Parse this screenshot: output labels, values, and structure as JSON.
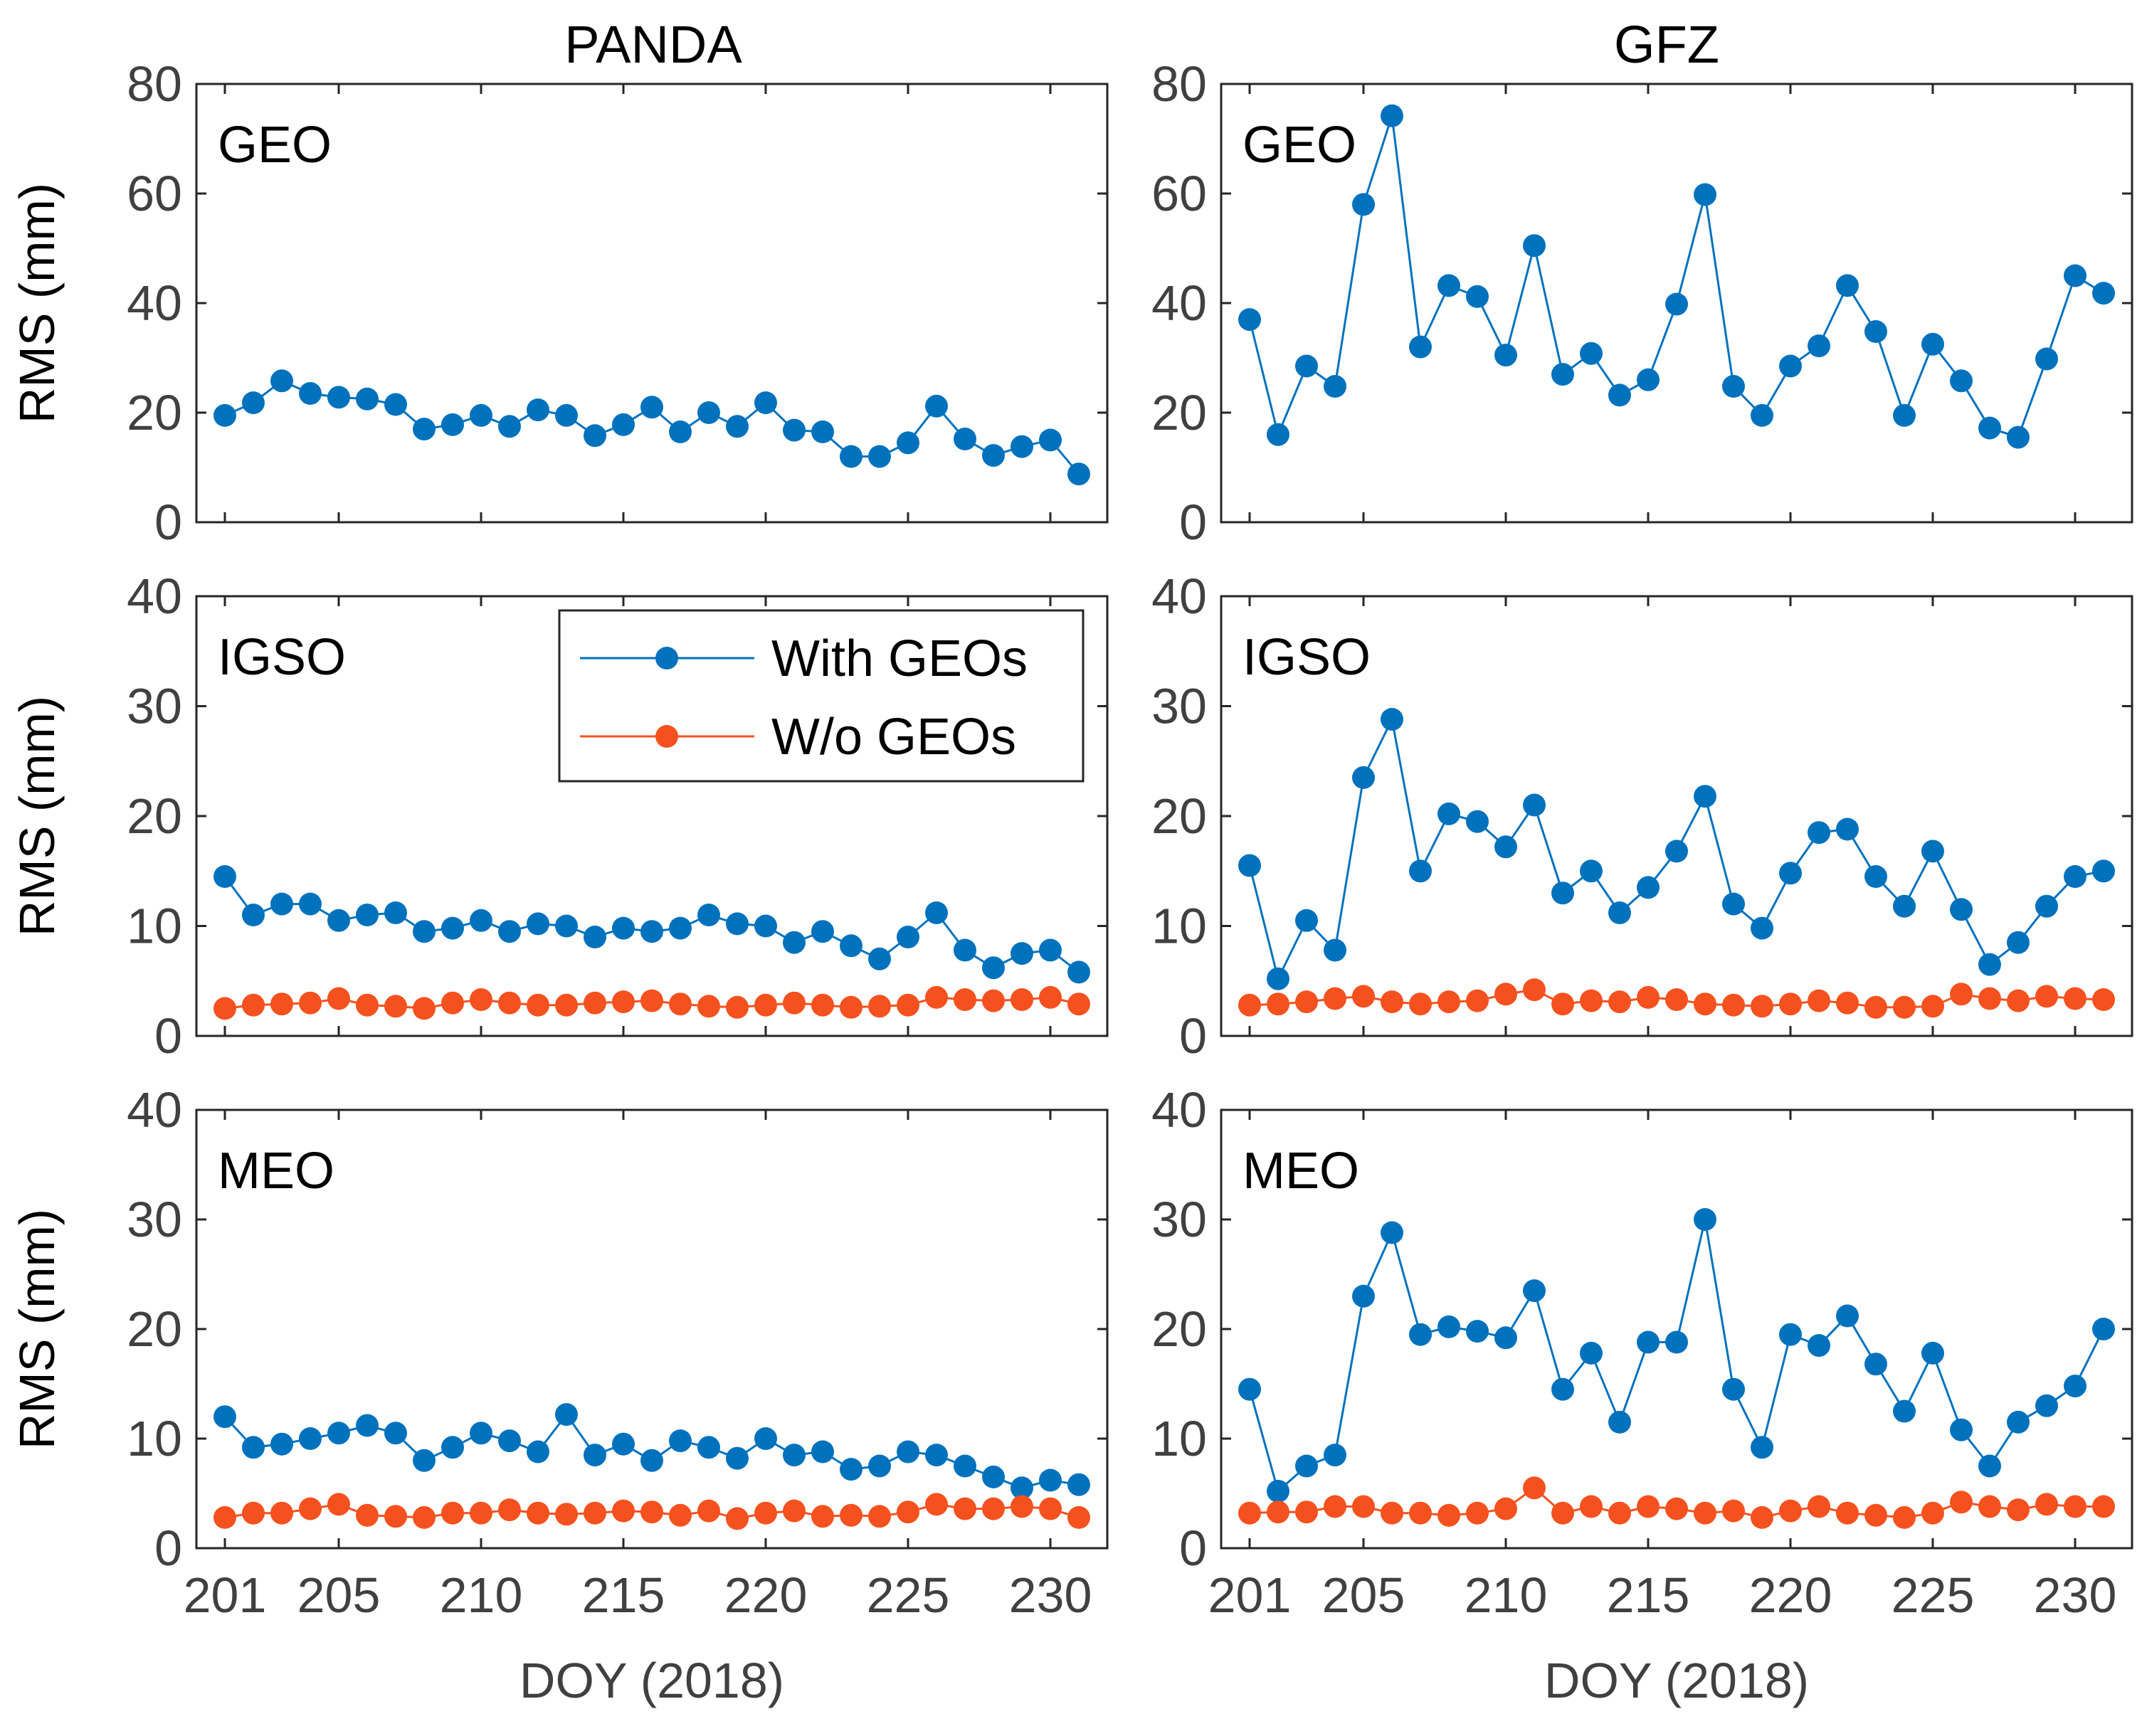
{
  "figure": {
    "column_titles": [
      "PANDA",
      "GFZ"
    ],
    "x_axis_label": "DOY (2018)",
    "y_axis_label": "RMS (mm)",
    "legend": {
      "entries": [
        {
          "label": "With GEOs",
          "color": "#0072BD"
        },
        {
          "label": "W/o GEOs",
          "color": "#F4511E"
        }
      ]
    }
  },
  "chart_data": [
    {
      "type": "line",
      "title": "GEO",
      "column": "PANDA",
      "xlabel": "",
      "ylabel": "RMS (mm)",
      "xlim": [
        200,
        232
      ],
      "ylim": [
        0,
        80
      ],
      "xticks": [
        201,
        205,
        210,
        215,
        220,
        225,
        230
      ],
      "yticks": [
        0,
        20,
        40,
        60,
        80
      ],
      "x": [
        201,
        202,
        203,
        204,
        205,
        206,
        207,
        208,
        209,
        210,
        211,
        212,
        213,
        214,
        215,
        216,
        217,
        218,
        219,
        220,
        221,
        222,
        223,
        224,
        225,
        226,
        227,
        228,
        229,
        230,
        231
      ],
      "series": [
        {
          "name": "With GEOs",
          "color": "#0072BD",
          "values": [
            19.5,
            21.8,
            25.8,
            23.5,
            22.8,
            22.5,
            21.5,
            17.0,
            17.8,
            19.5,
            17.5,
            20.5,
            19.5,
            15.8,
            17.8,
            21.0,
            16.5,
            20.0,
            17.5,
            21.8,
            16.8,
            16.5,
            12.0,
            12.0,
            14.5,
            21.2,
            15.2,
            12.2,
            13.8,
            15.0,
            8.8
          ]
        }
      ]
    },
    {
      "type": "line",
      "title": "GEO",
      "column": "GFZ",
      "xlabel": "",
      "ylabel": "",
      "xlim": [
        200,
        232
      ],
      "ylim": [
        0,
        80
      ],
      "xticks": [
        201,
        205,
        210,
        215,
        220,
        225,
        230
      ],
      "yticks": [
        0,
        20,
        40,
        60,
        80
      ],
      "x": [
        201,
        202,
        203,
        204,
        205,
        206,
        207,
        208,
        209,
        210,
        211,
        212,
        213,
        214,
        215,
        216,
        217,
        218,
        219,
        220,
        221,
        222,
        223,
        224,
        225,
        226,
        227,
        228,
        229,
        230,
        231
      ],
      "series": [
        {
          "name": "With GEOs",
          "color": "#0072BD",
          "values": [
            37.0,
            16.0,
            28.5,
            24.8,
            58.0,
            74.2,
            32.0,
            43.2,
            41.2,
            30.5,
            50.5,
            27.0,
            30.8,
            23.2,
            26.0,
            39.8,
            59.8,
            24.8,
            19.5,
            28.5,
            32.2,
            43.2,
            34.8,
            19.5,
            32.5,
            25.8,
            17.2,
            15.5,
            29.8,
            45.0,
            41.8
          ]
        }
      ]
    },
    {
      "type": "line",
      "title": "IGSO",
      "column": "PANDA",
      "xlabel": "",
      "ylabel": "RMS (mm)",
      "xlim": [
        200,
        232
      ],
      "ylim": [
        0,
        40
      ],
      "xticks": [
        201,
        205,
        210,
        215,
        220,
        225,
        230
      ],
      "yticks": [
        0,
        10,
        20,
        30,
        40
      ],
      "x": [
        201,
        202,
        203,
        204,
        205,
        206,
        207,
        208,
        209,
        210,
        211,
        212,
        213,
        214,
        215,
        216,
        217,
        218,
        219,
        220,
        221,
        222,
        223,
        224,
        225,
        226,
        227,
        228,
        229,
        230,
        231
      ],
      "series": [
        {
          "name": "With GEOs",
          "color": "#0072BD",
          "values": [
            14.5,
            11.0,
            12.0,
            12.0,
            10.5,
            11.0,
            11.2,
            9.5,
            9.8,
            10.5,
            9.5,
            10.2,
            10.0,
            9.0,
            9.8,
            9.5,
            9.8,
            11.0,
            10.2,
            10.0,
            8.5,
            9.5,
            8.2,
            7.0,
            9.0,
            11.2,
            7.8,
            6.2,
            7.5,
            7.8,
            5.8
          ]
        },
        {
          "name": "W/o GEOs",
          "color": "#F4511E",
          "values": [
            2.5,
            2.8,
            2.9,
            3.0,
            3.4,
            2.8,
            2.7,
            2.5,
            3.0,
            3.3,
            3.0,
            2.8,
            2.8,
            3.0,
            3.1,
            3.2,
            2.9,
            2.7,
            2.6,
            2.8,
            3.0,
            2.8,
            2.6,
            2.7,
            2.8,
            3.5,
            3.3,
            3.2,
            3.3,
            3.5,
            2.9
          ]
        }
      ]
    },
    {
      "type": "line",
      "title": "IGSO",
      "column": "GFZ",
      "xlabel": "",
      "ylabel": "",
      "xlim": [
        200,
        232
      ],
      "ylim": [
        0,
        40
      ],
      "xticks": [
        201,
        205,
        210,
        215,
        220,
        225,
        230
      ],
      "yticks": [
        0,
        10,
        20,
        30,
        40
      ],
      "x": [
        201,
        202,
        203,
        204,
        205,
        206,
        207,
        208,
        209,
        210,
        211,
        212,
        213,
        214,
        215,
        216,
        217,
        218,
        219,
        220,
        221,
        222,
        223,
        224,
        225,
        226,
        227,
        228,
        229,
        230,
        231
      ],
      "series": [
        {
          "name": "With GEOs",
          "color": "#0072BD",
          "values": [
            15.5,
            5.2,
            10.5,
            7.8,
            23.5,
            28.8,
            15.0,
            20.2,
            19.5,
            17.2,
            21.0,
            13.0,
            15.0,
            11.2,
            13.5,
            16.8,
            21.8,
            12.0,
            9.8,
            14.8,
            18.5,
            18.8,
            14.5,
            11.8,
            16.8,
            11.5,
            6.5,
            8.5,
            11.8,
            14.5,
            15.0
          ]
        },
        {
          "name": "W/o GEOs",
          "color": "#F4511E",
          "values": [
            2.8,
            2.9,
            3.1,
            3.4,
            3.6,
            3.1,
            2.9,
            3.1,
            3.2,
            3.8,
            4.2,
            2.9,
            3.2,
            3.1,
            3.5,
            3.3,
            2.9,
            2.8,
            2.7,
            2.9,
            3.2,
            3.0,
            2.6,
            2.6,
            2.7,
            3.8,
            3.4,
            3.2,
            3.6,
            3.4,
            3.3
          ]
        }
      ]
    },
    {
      "type": "line",
      "title": "MEO",
      "column": "PANDA",
      "xlabel": "DOY (2018)",
      "ylabel": "RMS (mm)",
      "xlim": [
        200,
        232
      ],
      "ylim": [
        0,
        40
      ],
      "xticks": [
        201,
        205,
        210,
        215,
        220,
        225,
        230
      ],
      "yticks": [
        0,
        10,
        20,
        30,
        40
      ],
      "x": [
        201,
        202,
        203,
        204,
        205,
        206,
        207,
        208,
        209,
        210,
        211,
        212,
        213,
        214,
        215,
        216,
        217,
        218,
        219,
        220,
        221,
        222,
        223,
        224,
        225,
        226,
        227,
        228,
        229,
        230,
        231
      ],
      "series": [
        {
          "name": "With GEOs",
          "color": "#0072BD",
          "values": [
            12.0,
            9.2,
            9.5,
            10.0,
            10.5,
            11.2,
            10.5,
            8.0,
            9.2,
            10.5,
            9.8,
            8.8,
            12.2,
            8.5,
            9.5,
            8.0,
            9.8,
            9.2,
            8.2,
            10.0,
            8.5,
            8.8,
            7.2,
            7.5,
            8.8,
            8.5,
            7.5,
            6.5,
            5.5,
            6.2,
            5.8
          ]
        },
        {
          "name": "W/o GEOs",
          "color": "#F4511E",
          "values": [
            2.8,
            3.2,
            3.2,
            3.6,
            4.0,
            3.0,
            2.9,
            2.8,
            3.2,
            3.2,
            3.5,
            3.2,
            3.1,
            3.2,
            3.4,
            3.3,
            3.0,
            3.4,
            2.7,
            3.2,
            3.4,
            2.9,
            3.0,
            2.9,
            3.3,
            4.0,
            3.6,
            3.6,
            3.8,
            3.6,
            2.8
          ]
        }
      ]
    },
    {
      "type": "line",
      "title": "MEO",
      "column": "GFZ",
      "xlabel": "DOY (2018)",
      "ylabel": "",
      "xlim": [
        200,
        232
      ],
      "ylim": [
        0,
        40
      ],
      "xticks": [
        201,
        205,
        210,
        215,
        220,
        225,
        230
      ],
      "yticks": [
        0,
        10,
        20,
        30,
        40
      ],
      "x": [
        201,
        202,
        203,
        204,
        205,
        206,
        207,
        208,
        209,
        210,
        211,
        212,
        213,
        214,
        215,
        216,
        217,
        218,
        219,
        220,
        221,
        222,
        223,
        224,
        225,
        226,
        227,
        228,
        229,
        230,
        231
      ],
      "series": [
        {
          "name": "With GEOs",
          "color": "#0072BD",
          "values": [
            14.5,
            5.2,
            7.5,
            8.5,
            23.0,
            28.8,
            19.5,
            20.2,
            19.8,
            19.2,
            23.5,
            14.5,
            17.8,
            11.5,
            18.8,
            18.8,
            30.0,
            14.5,
            9.2,
            19.5,
            18.5,
            21.2,
            16.8,
            12.5,
            17.8,
            10.8,
            7.5,
            11.5,
            13.0,
            14.8,
            20.0
          ]
        },
        {
          "name": "W/o GEOs",
          "color": "#F4511E",
          "values": [
            3.2,
            3.3,
            3.3,
            3.8,
            3.8,
            3.2,
            3.2,
            3.0,
            3.2,
            3.6,
            5.5,
            3.2,
            3.8,
            3.2,
            3.8,
            3.6,
            3.2,
            3.4,
            2.8,
            3.4,
            3.8,
            3.2,
            3.0,
            2.8,
            3.2,
            4.2,
            3.8,
            3.5,
            4.0,
            3.8,
            3.8
          ]
        }
      ]
    }
  ]
}
